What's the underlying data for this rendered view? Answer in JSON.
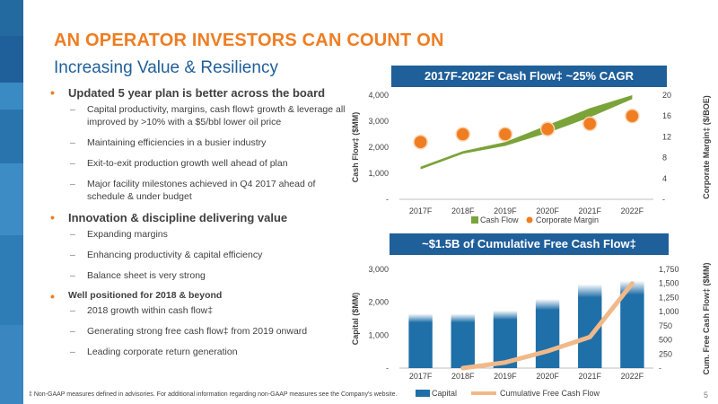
{
  "title": "AN OPERATOR INVESTORS CAN COUNT ON",
  "subtitle": "Increasing Value & Resiliency",
  "bullets": [
    {
      "text": "Updated 5 year plan is better across the board",
      "subs": [
        "Capital productivity, margins, cash flow‡ growth & leverage all improved by >10% with a $5/bbl lower oil price",
        "Maintaining efficiencies in a busier industry",
        "Exit-to-exit production growth well ahead of plan",
        "Major facility milestones achieved in Q4 2017 ahead of schedule & under budget"
      ]
    },
    {
      "text": "Innovation & discipline delivering value",
      "subs": [
        "Expanding margins",
        "Enhancing productivity & capital efficiency",
        "Balance sheet is very strong"
      ]
    },
    {
      "text": "Well positioned for 2018 & beyond",
      "subs": [
        "2018 growth within cash flow‡",
        "Generating strong free cash flow‡ from 2019 onward",
        "Leading corporate return generation"
      ]
    }
  ],
  "footnote": "‡ Non-GAAP measures defined in advisories. For additional information regarding non-GAAP measures see the Company's website.",
  "page_number": "5",
  "colors": {
    "orange": "#ef7d22",
    "blue": "#1f5f9a",
    "green": "#7aa33a",
    "bar_blue": "#1f6fa8",
    "peach": "#f1b98a"
  },
  "chart_data": [
    {
      "type": "area",
      "title": "2017F-2022F Cash Flow‡ ~25% CAGR",
      "categories": [
        "2017F",
        "2018F",
        "2019F",
        "2020F",
        "2021F",
        "2022F"
      ],
      "ylabel": "Cash Flow‡ ($MM)",
      "y2label": "Corporate Margin‡ ($/BOE)",
      "ylim": [
        0,
        4000
      ],
      "yticks": [
        "-",
        "1,000",
        "2,000",
        "3,000",
        "4,000"
      ],
      "y2lim": [
        0,
        20
      ],
      "y2ticks": [
        "-",
        "4",
        "8",
        "12",
        "16",
        "20"
      ],
      "series": [
        {
          "name": "Cash Flow",
          "type": "area",
          "low": [
            1150,
            1750,
            2050,
            2550,
            3150,
            3850
          ],
          "high": [
            1250,
            1850,
            2200,
            2850,
            3500,
            4000
          ]
        },
        {
          "name": "Corporate Margin",
          "type": "scatter",
          "values": [
            11.0,
            12.5,
            12.5,
            13.5,
            14.5,
            16.0
          ]
        }
      ],
      "legend": "bottom"
    },
    {
      "type": "bar",
      "title": "~$1.5B of Cumulative Free Cash Flow‡",
      "categories": [
        "2017F",
        "2018F",
        "2019F",
        "2020F",
        "2021F",
        "2022F"
      ],
      "ylabel": "Capital ($MM)",
      "y2label": "Cum. Free Cash Flow‡ ($MM)",
      "ylim": [
        0,
        3000
      ],
      "yticks": [
        "-",
        "1,000",
        "2,000",
        "3,000"
      ],
      "y2lim": [
        0,
        1750
      ],
      "y2ticks": [
        "-",
        "250",
        "500",
        "750",
        "1,000",
        "1,250",
        "1,500",
        "1,750"
      ],
      "series": [
        {
          "name": "Capital",
          "type": "bar",
          "values": [
            1650,
            1650,
            1750,
            2100,
            2550,
            2650
          ]
        },
        {
          "name": "Cumulative Free Cash Flow",
          "type": "line",
          "values": [
            null,
            0,
            100,
            300,
            550,
            1500
          ]
        }
      ],
      "legend": "bottom"
    }
  ]
}
